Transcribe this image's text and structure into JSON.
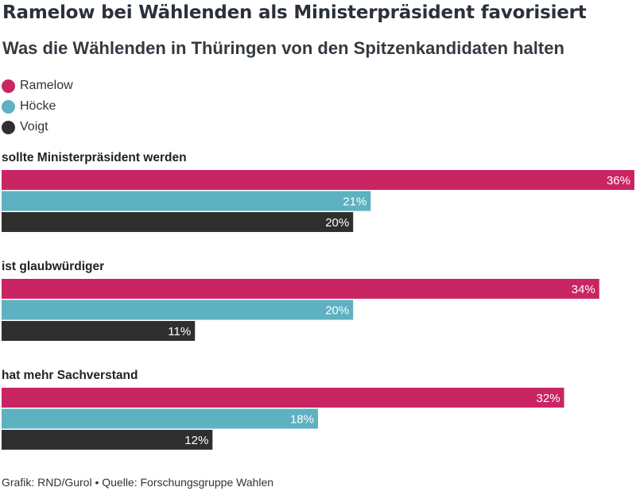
{
  "header": {
    "title": "Ramelow bei Wählenden als Ministerpräsident favorisiert",
    "subtitle": "Was die Wählenden in Thüringen von den Spitzenkandidaten halten"
  },
  "legend": [
    {
      "label": "Ramelow",
      "color": "#c92563"
    },
    {
      "label": "Höcke",
      "color": "#5eb1c0"
    },
    {
      "label": "Voigt",
      "color": "#2f2f2f"
    }
  ],
  "chart_data": {
    "type": "bar",
    "orientation": "horizontal",
    "categories": [
      "sollte Ministerpräsident werden",
      "ist glaubwürdiger",
      "hat mehr Sachverstand"
    ],
    "series": [
      {
        "name": "Ramelow",
        "color": "#c92563",
        "values": [
          36,
          34,
          32
        ],
        "labels": [
          "36%",
          "34%",
          "32%"
        ]
      },
      {
        "name": "Höcke",
        "color": "#5eb1c0",
        "values": [
          21,
          20,
          18
        ],
        "labels": [
          "21%",
          "20%",
          "18%"
        ]
      },
      {
        "name": "Voigt",
        "color": "#2f2f2f",
        "values": [
          20,
          11,
          12
        ],
        "labels": [
          "20%",
          "11%",
          "12%"
        ]
      }
    ],
    "xlim": [
      0,
      36
    ],
    "grid": false,
    "legend_position": "top-left"
  },
  "footer": {
    "source": "Grafik: RND/Gurol • Quelle: Forschungsgruppe Wahlen"
  }
}
